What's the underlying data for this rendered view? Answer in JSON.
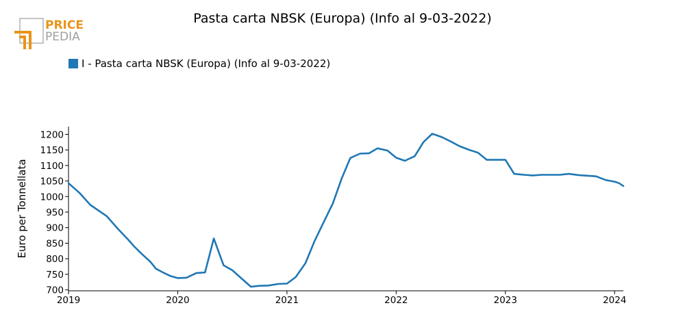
{
  "brand": {
    "line1": "PRICE",
    "line2": "PEDIA",
    "color_orange": "#E8941A",
    "color_gray": "#9E9E9E"
  },
  "colors": {
    "series": "#1F77B4",
    "axis": "#000000"
  },
  "chart_data": {
    "type": "line",
    "title": "Pasta carta NBSK (Europa) (Info al 9-03-2022)",
    "xlabel": "",
    "ylabel": "Euro per Tonnellata",
    "legend_position": "top-left",
    "grid": false,
    "xlim": [
      2019.0,
      2024.08
    ],
    "ylim": [
      697,
      1225
    ],
    "x_ticks": [
      2019,
      2020,
      2021,
      2022,
      2023,
      2024
    ],
    "y_ticks": [
      700,
      750,
      800,
      850,
      900,
      950,
      1000,
      1050,
      1100,
      1150,
      1200
    ],
    "series": [
      {
        "name": "I - Pasta carta NBSK (Europa) (Info al 9-03-2022)",
        "color": "#1F77B4",
        "points": [
          [
            2019.0,
            1043
          ],
          [
            2019.1,
            1012
          ],
          [
            2019.2,
            973
          ],
          [
            2019.35,
            937
          ],
          [
            2019.45,
            897
          ],
          [
            2019.55,
            860
          ],
          [
            2019.6,
            840
          ],
          [
            2019.67,
            816
          ],
          [
            2019.75,
            790
          ],
          [
            2019.8,
            768
          ],
          [
            2019.87,
            755
          ],
          [
            2019.93,
            745
          ],
          [
            2020.0,
            738
          ],
          [
            2020.08,
            739
          ],
          [
            2020.17,
            754
          ],
          [
            2020.25,
            756
          ],
          [
            2020.33,
            865
          ],
          [
            2020.42,
            779
          ],
          [
            2020.5,
            763
          ],
          [
            2020.58,
            738
          ],
          [
            2020.67,
            710
          ],
          [
            2020.75,
            713
          ],
          [
            2020.83,
            714
          ],
          [
            2020.92,
            719
          ],
          [
            2021.0,
            720
          ],
          [
            2021.08,
            741
          ],
          [
            2021.17,
            786
          ],
          [
            2021.25,
            855
          ],
          [
            2021.33,
            913
          ],
          [
            2021.42,
            978
          ],
          [
            2021.5,
            1057
          ],
          [
            2021.58,
            1124
          ],
          [
            2021.67,
            1138
          ],
          [
            2021.75,
            1139
          ],
          [
            2021.83,
            1155
          ],
          [
            2021.92,
            1148
          ],
          [
            2022.0,
            1125
          ],
          [
            2022.08,
            1115
          ],
          [
            2022.17,
            1130
          ],
          [
            2022.25,
            1175
          ],
          [
            2022.33,
            1202
          ],
          [
            2022.42,
            1191
          ],
          [
            2022.5,
            1177
          ],
          [
            2022.58,
            1162
          ],
          [
            2022.67,
            1150
          ],
          [
            2022.75,
            1141
          ],
          [
            2022.83,
            1118
          ],
          [
            2022.92,
            1118
          ],
          [
            2023.0,
            1118
          ],
          [
            2023.08,
            1073
          ],
          [
            2023.17,
            1070
          ],
          [
            2023.25,
            1068
          ],
          [
            2023.33,
            1070
          ],
          [
            2023.42,
            1070
          ],
          [
            2023.5,
            1070
          ],
          [
            2023.58,
            1073
          ],
          [
            2023.67,
            1069
          ],
          [
            2023.75,
            1067
          ],
          [
            2023.83,
            1065
          ],
          [
            2023.92,
            1053
          ],
          [
            2024.0,
            1048
          ],
          [
            2024.04,
            1043
          ],
          [
            2024.08,
            1034
          ]
        ]
      }
    ]
  }
}
